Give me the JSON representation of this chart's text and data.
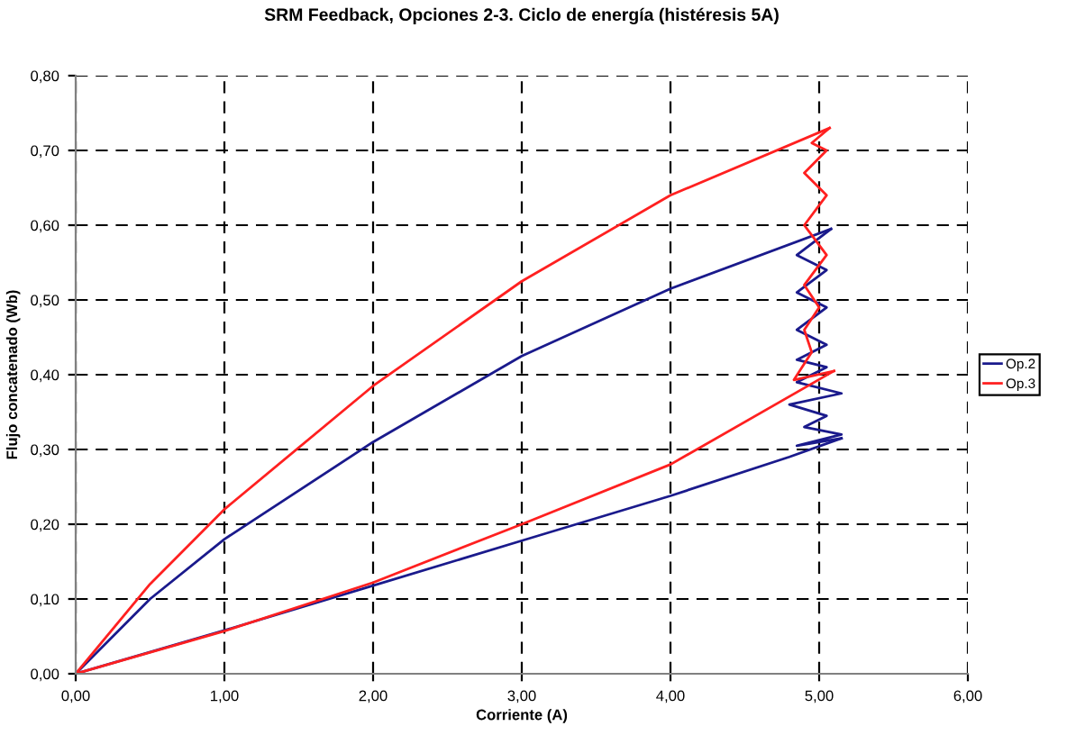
{
  "chart_data": {
    "type": "line",
    "title": "SRM Feedback, Opciones 2-3. Ciclo de energía (histéresis 5A)",
    "xlabel": "Corriente (A)",
    "ylabel": "Flujo concatenado (Wb)",
    "xlim": [
      0,
      6
    ],
    "ylim": [
      0,
      0.8
    ],
    "xticks": [
      {
        "value": 0,
        "label": "0,00"
      },
      {
        "value": 1,
        "label": "1,00"
      },
      {
        "value": 2,
        "label": "2,00"
      },
      {
        "value": 3,
        "label": "3,00"
      },
      {
        "value": 4,
        "label": "4,00"
      },
      {
        "value": 5,
        "label": "5,00"
      },
      {
        "value": 6,
        "label": "6,00"
      }
    ],
    "yticks": [
      {
        "value": 0,
        "label": "0,00"
      },
      {
        "value": 0.1,
        "label": "0,10"
      },
      {
        "value": 0.2,
        "label": "0,20"
      },
      {
        "value": 0.3,
        "label": "0,30"
      },
      {
        "value": 0.4,
        "label": "0,40"
      },
      {
        "value": 0.5,
        "label": "0,50"
      },
      {
        "value": 0.6,
        "label": "0,60"
      },
      {
        "value": 0.7,
        "label": "0,70"
      },
      {
        "value": 0.8,
        "label": "0,80"
      }
    ],
    "grid": true,
    "legend": "right",
    "line_style": "solid",
    "marker": "none",
    "series": [
      {
        "name": "Op.2",
        "color": "#1a1a8c",
        "x": [
          0,
          1,
          2,
          3,
          4,
          4.8,
          5.15
        ],
        "values": [
          0,
          0.058,
          0.118,
          0.178,
          0.238,
          0.29,
          0.315
        ]
      },
      {
        "color": "#1a1a8c",
        "x": [
          5.15,
          4.85,
          5.15,
          4.9,
          5.05,
          4.8,
          5.15,
          4.85,
          5.05,
          4.85,
          5.05,
          4.85,
          5.05,
          4.85,
          5.05,
          4.85,
          5.08
        ],
        "values": [
          0.315,
          0.305,
          0.32,
          0.33,
          0.345,
          0.36,
          0.375,
          0.39,
          0.41,
          0.42,
          0.44,
          0.46,
          0.49,
          0.51,
          0.54,
          0.56,
          0.595
        ]
      },
      {
        "color": "#1a1a8c",
        "x": [
          5.08,
          4,
          3,
          2,
          1,
          0.5,
          0
        ],
        "values": [
          0.595,
          0.515,
          0.425,
          0.31,
          0.18,
          0.1,
          0
        ]
      },
      {
        "name": "Op.3",
        "color": "#ff2020",
        "x": [
          0,
          1,
          2,
          3,
          4,
          5.1
        ],
        "values": [
          0,
          0.057,
          0.122,
          0.2,
          0.28,
          0.405
        ]
      },
      {
        "color": "#ff2020",
        "x": [
          5.1,
          4.83,
          4.95,
          4.9,
          5.0,
          4.9,
          5.05,
          4.9,
          5.05,
          4.9,
          5.05,
          4.95,
          5.07
        ],
        "values": [
          0.405,
          0.393,
          0.43,
          0.46,
          0.49,
          0.52,
          0.56,
          0.6,
          0.64,
          0.67,
          0.7,
          0.71,
          0.73
        ]
      },
      {
        "color": "#ff2020",
        "x": [
          5.07,
          4,
          3,
          2,
          1,
          0.5,
          0
        ],
        "values": [
          0.73,
          0.64,
          0.525,
          0.385,
          0.22,
          0.12,
          0
        ]
      }
    ]
  }
}
